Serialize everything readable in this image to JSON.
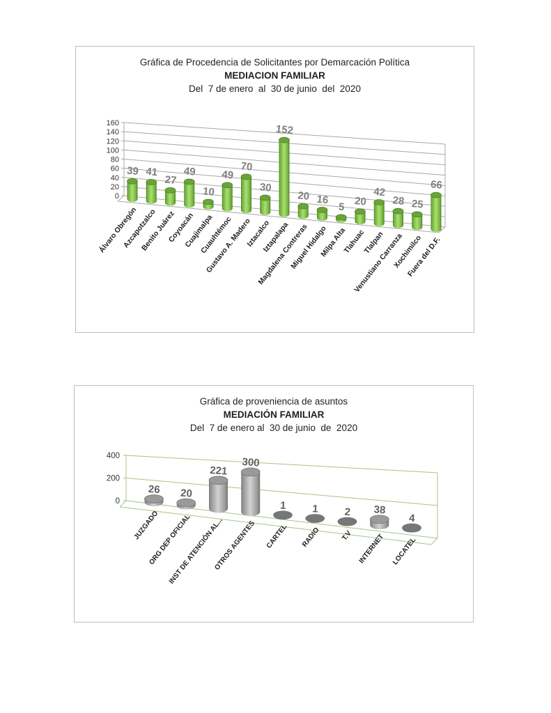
{
  "chart_data": [
    {
      "type": "bar",
      "style": "3d-cylinder",
      "title": "Gráfica de Procedencia de Solicitantes por Demarcación Política",
      "subtitle": "MEDIACION FAMILIAR",
      "period": "Del  7 de enero  al  30 de junio  del  2020",
      "categories": [
        "Álvaro Obregón",
        "Azcapotzalco",
        "Benito Juárez",
        "Coyoacán",
        "Cuajimalpa",
        "Cuauhtémoc",
        "Gustavo A. Madero",
        "Iztacalco",
        "Iztapalapa",
        "Magdalena Contreras",
        "Miguel Hidalgo",
        "Milpa Alta",
        "Tlahuac",
        "Tlalpan",
        "Venustiano Carranza",
        "Xochimilco",
        "Fuera del D.F."
      ],
      "values": [
        39,
        41,
        27,
        49,
        10,
        49,
        70,
        30,
        152,
        20,
        16,
        5,
        20,
        42,
        28,
        25,
        66
      ],
      "ylim": [
        0,
        160
      ],
      "ytick_step": 20,
      "yticks": [
        0,
        20,
        40,
        60,
        80,
        100,
        120,
        140,
        160
      ],
      "legend": "none",
      "grid": "on",
      "grid_color": "#a8a8a8",
      "bar_gradient": [
        "#55892c",
        "#74b33e",
        "#a9df71",
        "#74b33e",
        "#4f7f29"
      ],
      "cap_color": "#68a437",
      "cap_edge": "#4e7a28",
      "flat_color": "#5d9431",
      "value_label_color": "#7f7f7f",
      "tick_label_color": "#333333",
      "category_label_color": "#1f1f1f"
    },
    {
      "type": "bar",
      "style": "3d-cylinder",
      "title": "Gráfica de proveniencia de asuntos",
      "subtitle": "MEDIACIÓN FAMILIAR",
      "period": "Del  7 de enero al  30 de junio  de  2020",
      "categories": [
        "JUZGADO",
        "ORG DEP OFICIAL",
        "INST DE ATENCIÓN AL...",
        "OTROS AGENTES",
        "CARTEL",
        "RADIO",
        "T.V",
        "INTERNET",
        "LOCATEL"
      ],
      "values": [
        26,
        20,
        221,
        300,
        1,
        1,
        2,
        38,
        4
      ],
      "ylim": [
        0,
        400
      ],
      "ytick_step": 200,
      "yticks": [
        0,
        200,
        400
      ],
      "legend": "none",
      "grid": "on",
      "grid_color": "#a4c585",
      "bar_gradient": [
        "#7d7d7d",
        "#9b9b9b",
        "#d2d2d2",
        "#9b9b9b",
        "#757575"
      ],
      "cap_color": "#9a9a9a",
      "cap_edge": "#6e6e6e",
      "flat_color": "#777777",
      "value_label_color": "#606060",
      "tick_label_color": "#333333",
      "category_label_color": "#1f1f1f"
    }
  ]
}
